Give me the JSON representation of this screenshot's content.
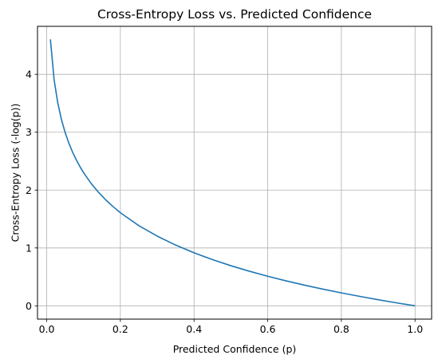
{
  "chart_data": {
    "type": "line",
    "title": "Cross-Entropy Loss vs. Predicted Confidence",
    "xlabel": "Predicted Confidence (p)",
    "ylabel": "Cross-Entropy Loss (-log(p))",
    "xlim": [
      -0.025,
      1.045
    ],
    "ylim": [
      -0.23,
      4.83
    ],
    "xticks": [
      0.0,
      0.2,
      0.4,
      0.6,
      0.8,
      1.0
    ],
    "xtick_labels": [
      "0.0",
      "0.2",
      "0.4",
      "0.6",
      "0.8",
      "1.0"
    ],
    "yticks": [
      0,
      1,
      2,
      3,
      4
    ],
    "ytick_labels": [
      "0",
      "1",
      "2",
      "3",
      "4"
    ],
    "grid": true,
    "series": [
      {
        "color": "#1f77b4",
        "x": [
          0.01,
          0.02,
          0.03,
          0.04,
          0.05,
          0.06,
          0.07,
          0.08,
          0.09,
          0.1,
          0.12,
          0.14,
          0.16,
          0.18,
          0.2,
          0.25,
          0.3,
          0.35,
          0.4,
          0.45,
          0.5,
          0.55,
          0.6,
          0.65,
          0.7,
          0.75,
          0.8,
          0.85,
          0.9,
          0.95,
          1.0
        ],
        "y": [
          4.605,
          3.912,
          3.507,
          3.219,
          2.996,
          2.813,
          2.659,
          2.526,
          2.408,
          2.303,
          2.12,
          1.966,
          1.833,
          1.715,
          1.609,
          1.386,
          1.204,
          1.05,
          0.916,
          0.799,
          0.693,
          0.598,
          0.511,
          0.431,
          0.357,
          0.288,
          0.223,
          0.163,
          0.105,
          0.051,
          0.0
        ]
      }
    ]
  }
}
